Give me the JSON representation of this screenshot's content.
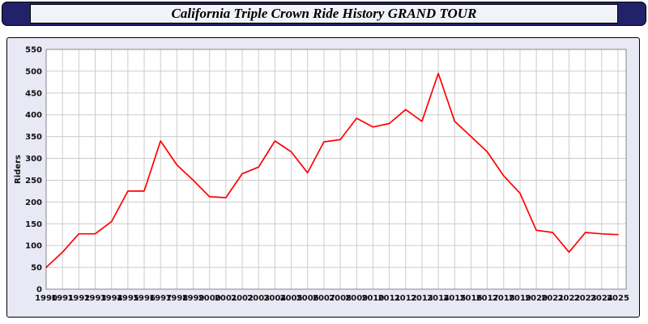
{
  "header": {
    "title": "California Triple Crown Ride History GRAND TOUR"
  },
  "colors": {
    "line": "#ff0000",
    "header_bg": "#22226a",
    "panel_bg": "#e9e9f6",
    "plot_bg": "#ffffff",
    "grid": "#cccccc",
    "plot_border": "#888888",
    "tick_text": "#111111"
  },
  "chart_data": {
    "type": "line",
    "title": "California Triple Crown Ride History GRAND TOUR",
    "xlabel": "",
    "ylabel": "Riders",
    "ylim": [
      0,
      550
    ],
    "ytick_step": 50,
    "grid": true,
    "legend": "none",
    "x": [
      1990,
      1991,
      1992,
      1993,
      1994,
      1995,
      1996,
      1997,
      1998,
      1999,
      2000,
      2001,
      2002,
      2003,
      2004,
      2005,
      2006,
      2007,
      2008,
      2009,
      2010,
      2011,
      2012,
      2013,
      2014,
      2015,
      2016,
      2017,
      2018,
      2019,
      2020,
      2021,
      2022,
      2023,
      2024,
      2025
    ],
    "values": [
      50,
      85,
      127,
      127,
      155,
      225,
      225,
      340,
      285,
      250,
      212,
      210,
      265,
      280,
      340,
      315,
      267,
      338,
      343,
      392,
      372,
      380,
      412,
      385,
      495,
      385,
      350,
      315,
      260,
      220,
      135,
      130,
      85,
      130,
      127,
      125
    ]
  }
}
